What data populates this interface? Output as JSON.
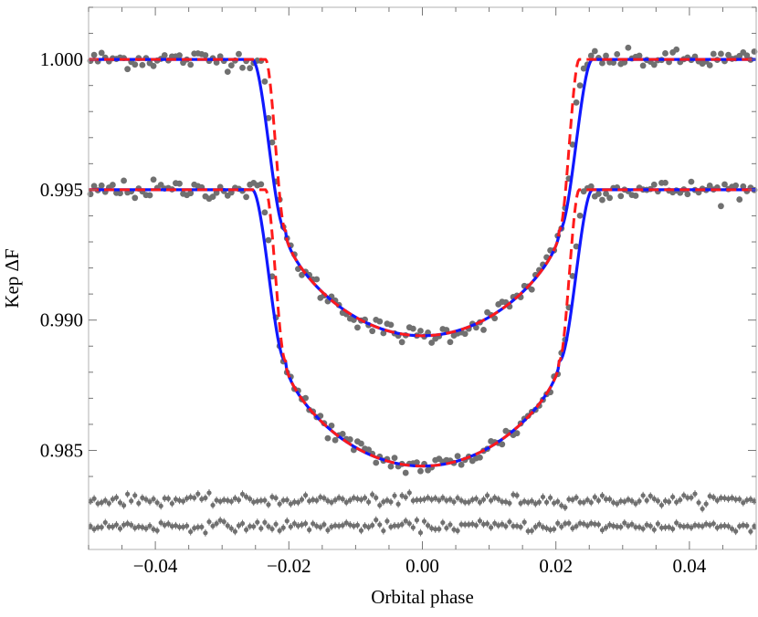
{
  "chart_data": {
    "type": "scatter",
    "title": "",
    "xlabel": "Orbital phase",
    "ylabel": "Kep ΔF",
    "xlim": [
      -0.05,
      0.05
    ],
    "ylim": [
      0.9812,
      1.002
    ],
    "grid": false,
    "legend": "none",
    "x_ticks": [
      -0.04,
      -0.02,
      0.0,
      0.02,
      0.04
    ],
    "x_tick_labels": [
      "−0.04",
      "−0.02",
      "0.00",
      "0.02",
      "0.04"
    ],
    "y_ticks": [
      0.985,
      0.99,
      0.995,
      1.0
    ],
    "y_tick_labels": [
      "0.985",
      "0.990",
      "0.995",
      "1.000"
    ],
    "transits": [
      {
        "baseline": 1.0,
        "depth": 0.0106,
        "full_edge": 0.0205,
        "contact_blue": 0.0255,
        "contact_red": 0.0235
      },
      {
        "baseline": 0.995,
        "depth": 0.0106,
        "full_edge": 0.0205,
        "contact_blue": 0.0255,
        "contact_red": 0.0235
      }
    ],
    "data_points_per_transit": 180,
    "data_scatter": 0.00018,
    "residual_levels": [
      0.9831,
      0.9821
    ],
    "residual_scatter": 0.0001,
    "series": [
      {
        "type": "scatter",
        "color": "#707070"
      },
      {
        "type": "line",
        "color": "#1018ff"
      },
      {
        "type": "line",
        "color": "#ff1a1a",
        "dash": "dashed"
      }
    ]
  }
}
